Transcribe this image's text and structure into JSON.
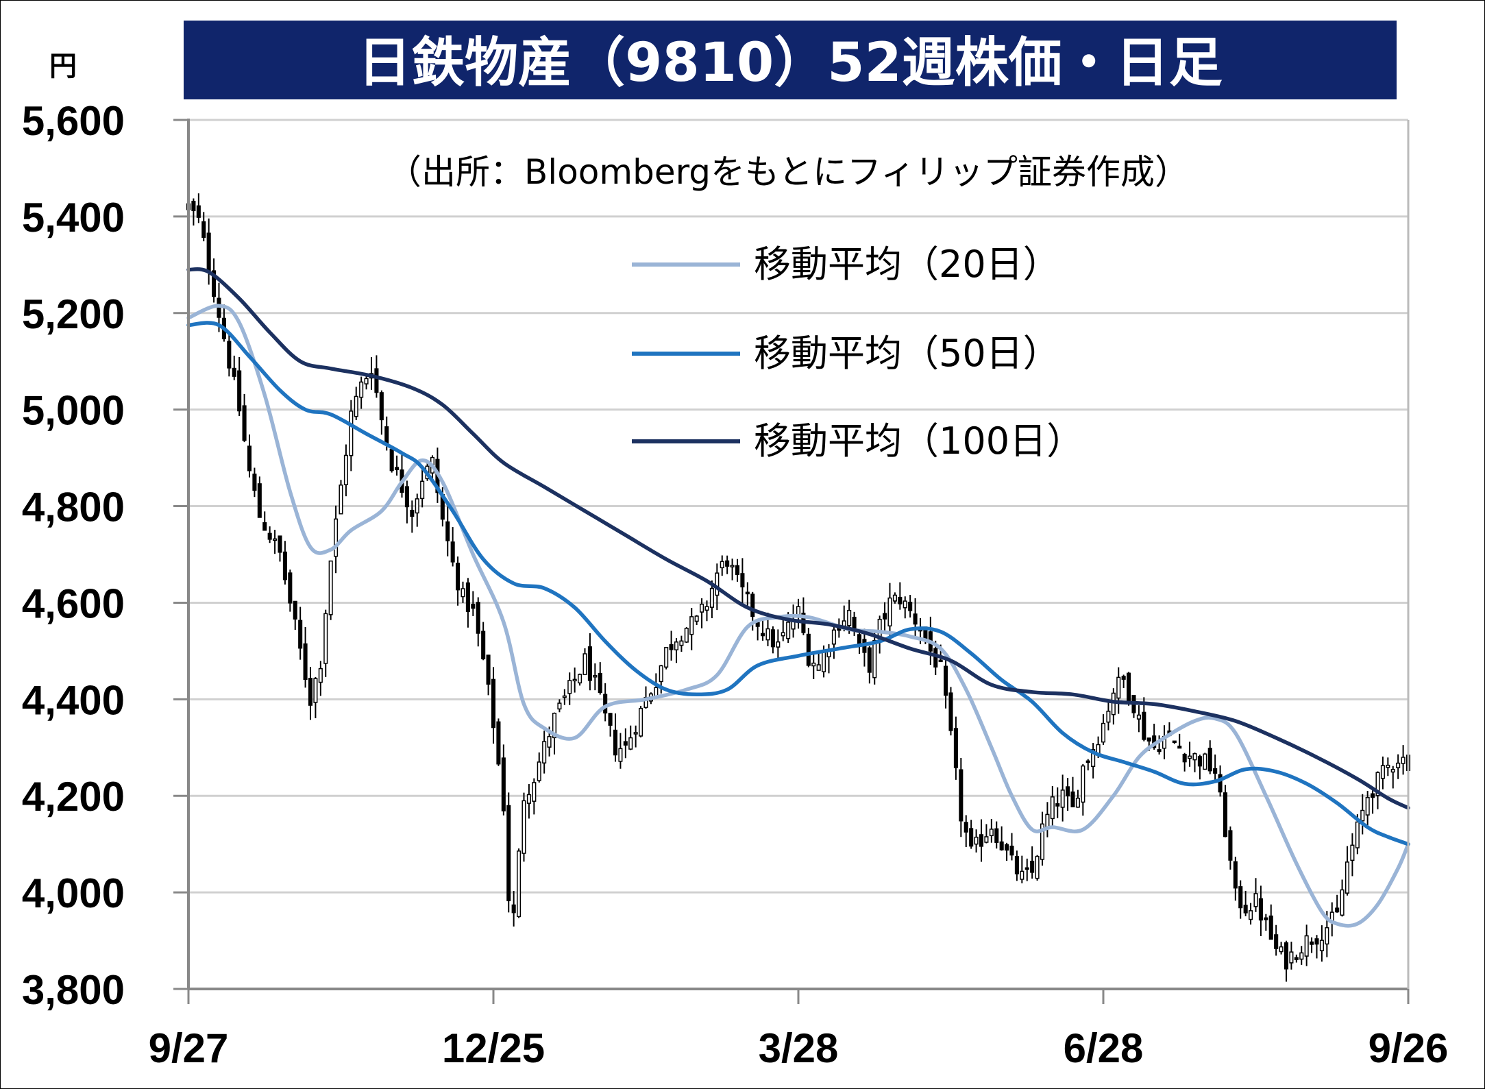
{
  "chart_data": {
    "type": "candlestick",
    "title": "日鉄物産（9810）52週株価・日足",
    "unit_label": "円",
    "source_note": "（出所：Bloombergをもとにフィリップ証券作成）",
    "ylim": [
      3800,
      5600
    ],
    "y_ticks": [
      3800,
      4000,
      4200,
      4400,
      4600,
      4800,
      5000,
      5200,
      5400,
      5600
    ],
    "y_tick_labels": [
      "3,800",
      "4,000",
      "4,200",
      "4,400",
      "4,600",
      "4,800",
      "5,000",
      "5,200",
      "5,400",
      "5,600"
    ],
    "x_tick_labels": [
      "9/27",
      "12/25",
      "3/28",
      "6/28",
      "9/26"
    ],
    "x_tick_index": [
      0,
      60,
      120,
      180,
      240
    ],
    "trading_days": 241,
    "grid": true,
    "legend_position": "top-right",
    "colors": {
      "title_bg": "#10256b",
      "grid": "#d0d0d0",
      "ma20": "#9ab4d6",
      "ma50": "#1f74c0",
      "ma100": "#1c3160",
      "candle_up": "#ffffff",
      "candle_down": "#000000"
    },
    "series": [
      {
        "name": "移動平均（20日）",
        "key": "ma20",
        "anchors": [
          [
            0,
            5190
          ],
          [
            6,
            5215
          ],
          [
            10,
            5180
          ],
          [
            15,
            5030
          ],
          [
            20,
            4830
          ],
          [
            24,
            4715
          ],
          [
            28,
            4710
          ],
          [
            32,
            4750
          ],
          [
            38,
            4790
          ],
          [
            42,
            4850
          ],
          [
            46,
            4895
          ],
          [
            50,
            4850
          ],
          [
            56,
            4700
          ],
          [
            62,
            4560
          ],
          [
            66,
            4390
          ],
          [
            70,
            4340
          ],
          [
            76,
            4320
          ],
          [
            82,
            4385
          ],
          [
            90,
            4400
          ],
          [
            98,
            4420
          ],
          [
            104,
            4450
          ],
          [
            110,
            4550
          ],
          [
            116,
            4570
          ],
          [
            122,
            4570
          ],
          [
            130,
            4545
          ],
          [
            136,
            4540
          ],
          [
            142,
            4530
          ],
          [
            148,
            4505
          ],
          [
            153,
            4420
          ],
          [
            158,
            4300
          ],
          [
            162,
            4200
          ],
          [
            166,
            4130
          ],
          [
            170,
            4135
          ],
          [
            176,
            4130
          ],
          [
            182,
            4200
          ],
          [
            187,
            4280
          ],
          [
            192,
            4320
          ],
          [
            198,
            4355
          ],
          [
            202,
            4360
          ],
          [
            206,
            4330
          ],
          [
            212,
            4200
          ],
          [
            218,
            4060
          ],
          [
            223,
            3960
          ],
          [
            226,
            3935
          ],
          [
            230,
            3935
          ],
          [
            234,
            3975
          ],
          [
            238,
            4050
          ],
          [
            240,
            4100
          ]
        ]
      },
      {
        "name": "移動平均（50日）",
        "key": "ma50",
        "anchors": [
          [
            0,
            5175
          ],
          [
            6,
            5175
          ],
          [
            12,
            5110
          ],
          [
            18,
            5040
          ],
          [
            23,
            5000
          ],
          [
            28,
            4990
          ],
          [
            35,
            4950
          ],
          [
            42,
            4910
          ],
          [
            46,
            4880
          ],
          [
            52,
            4790
          ],
          [
            58,
            4690
          ],
          [
            64,
            4640
          ],
          [
            70,
            4630
          ],
          [
            76,
            4590
          ],
          [
            82,
            4520
          ],
          [
            88,
            4460
          ],
          [
            94,
            4420
          ],
          [
            100,
            4410
          ],
          [
            106,
            4420
          ],
          [
            112,
            4470
          ],
          [
            120,
            4490
          ],
          [
            128,
            4505
          ],
          [
            136,
            4520
          ],
          [
            142,
            4545
          ],
          [
            148,
            4540
          ],
          [
            154,
            4495
          ],
          [
            160,
            4440
          ],
          [
            166,
            4395
          ],
          [
            172,
            4330
          ],
          [
            178,
            4290
          ],
          [
            184,
            4270
          ],
          [
            190,
            4250
          ],
          [
            196,
            4225
          ],
          [
            202,
            4230
          ],
          [
            208,
            4255
          ],
          [
            214,
            4250
          ],
          [
            220,
            4225
          ],
          [
            226,
            4185
          ],
          [
            232,
            4135
          ],
          [
            236,
            4115
          ],
          [
            240,
            4100
          ]
        ]
      },
      {
        "name": "移動平均（100日）",
        "key": "ma100",
        "anchors": [
          [
            0,
            5290
          ],
          [
            4,
            5285
          ],
          [
            10,
            5230
          ],
          [
            16,
            5160
          ],
          [
            22,
            5100
          ],
          [
            28,
            5085
          ],
          [
            36,
            5070
          ],
          [
            44,
            5045
          ],
          [
            50,
            5010
          ],
          [
            56,
            4950
          ],
          [
            62,
            4890
          ],
          [
            70,
            4840
          ],
          [
            78,
            4790
          ],
          [
            86,
            4740
          ],
          [
            94,
            4690
          ],
          [
            102,
            4645
          ],
          [
            110,
            4590
          ],
          [
            118,
            4565
          ],
          [
            126,
            4555
          ],
          [
            134,
            4535
          ],
          [
            142,
            4505
          ],
          [
            150,
            4480
          ],
          [
            158,
            4430
          ],
          [
            166,
            4415
          ],
          [
            174,
            4410
          ],
          [
            182,
            4395
          ],
          [
            190,
            4390
          ],
          [
            198,
            4375
          ],
          [
            206,
            4355
          ],
          [
            214,
            4320
          ],
          [
            222,
            4280
          ],
          [
            230,
            4235
          ],
          [
            236,
            4195
          ],
          [
            240,
            4175
          ]
        ]
      }
    ],
    "price_path": [
      [
        0,
        5420
      ],
      [
        2,
        5390
      ],
      [
        4,
        5300
      ],
      [
        6,
        5200
      ],
      [
        8,
        5100
      ],
      [
        10,
        5000
      ],
      [
        12,
        4870
      ],
      [
        14,
        4780
      ],
      [
        16,
        4740
      ],
      [
        18,
        4700
      ],
      [
        20,
        4600
      ],
      [
        22,
        4500
      ],
      [
        24,
        4400
      ],
      [
        26,
        4480
      ],
      [
        28,
        4690
      ],
      [
        30,
        4840
      ],
      [
        32,
        4990
      ],
      [
        34,
        5050
      ],
      [
        36,
        5090
      ],
      [
        38,
        4980
      ],
      [
        40,
        4890
      ],
      [
        42,
        4840
      ],
      [
        44,
        4790
      ],
      [
        46,
        4860
      ],
      [
        48,
        4890
      ],
      [
        50,
        4770
      ],
      [
        52,
        4680
      ],
      [
        54,
        4610
      ],
      [
        56,
        4580
      ],
      [
        58,
        4480
      ],
      [
        60,
        4350
      ],
      [
        62,
        4180
      ],
      [
        63,
        3990
      ],
      [
        64,
        3950
      ],
      [
        66,
        4200
      ],
      [
        68,
        4240
      ],
      [
        70,
        4300
      ],
      [
        72,
        4360
      ],
      [
        74,
        4400
      ],
      [
        76,
        4440
      ],
      [
        78,
        4480
      ],
      [
        80,
        4430
      ],
      [
        82,
        4360
      ],
      [
        84,
        4300
      ],
      [
        86,
        4300
      ],
      [
        88,
        4350
      ],
      [
        90,
        4400
      ],
      [
        92,
        4440
      ],
      [
        94,
        4500
      ],
      [
        96,
        4530
      ],
      [
        98,
        4550
      ],
      [
        100,
        4560
      ],
      [
        102,
        4600
      ],
      [
        104,
        4660
      ],
      [
        106,
        4690
      ],
      [
        108,
        4640
      ],
      [
        110,
        4600
      ],
      [
        112,
        4560
      ],
      [
        114,
        4530
      ],
      [
        116,
        4510
      ],
      [
        118,
        4550
      ],
      [
        120,
        4580
      ],
      [
        122,
        4490
      ],
      [
        124,
        4470
      ],
      [
        126,
        4520
      ],
      [
        128,
        4560
      ],
      [
        130,
        4580
      ],
      [
        132,
        4500
      ],
      [
        134,
        4470
      ],
      [
        136,
        4550
      ],
      [
        138,
        4600
      ],
      [
        140,
        4610
      ],
      [
        142,
        4580
      ],
      [
        144,
        4550
      ],
      [
        146,
        4500
      ],
      [
        148,
        4460
      ],
      [
        150,
        4320
      ],
      [
        152,
        4160
      ],
      [
        154,
        4080
      ],
      [
        156,
        4110
      ],
      [
        158,
        4140
      ],
      [
        160,
        4100
      ],
      [
        162,
        4060
      ],
      [
        164,
        4030
      ],
      [
        166,
        4040
      ],
      [
        168,
        4130
      ],
      [
        170,
        4180
      ],
      [
        172,
        4200
      ],
      [
        174,
        4170
      ],
      [
        176,
        4260
      ],
      [
        178,
        4300
      ],
      [
        180,
        4350
      ],
      [
        182,
        4420
      ],
      [
        184,
        4440
      ],
      [
        186,
        4390
      ],
      [
        188,
        4330
      ],
      [
        190,
        4300
      ],
      [
        192,
        4320
      ],
      [
        194,
        4310
      ],
      [
        196,
        4290
      ],
      [
        198,
        4280
      ],
      [
        200,
        4270
      ],
      [
        202,
        4250
      ],
      [
        204,
        4130
      ],
      [
        206,
        3990
      ],
      [
        208,
        3970
      ],
      [
        210,
        3980
      ],
      [
        212,
        3930
      ],
      [
        214,
        3880
      ],
      [
        216,
        3860
      ],
      [
        218,
        3880
      ],
      [
        220,
        3900
      ],
      [
        222,
        3910
      ],
      [
        224,
        3930
      ],
      [
        226,
        3950
      ],
      [
        228,
        4060
      ],
      [
        230,
        4130
      ],
      [
        232,
        4200
      ],
      [
        234,
        4230
      ],
      [
        236,
        4260
      ],
      [
        238,
        4280
      ],
      [
        240,
        4270
      ]
    ]
  }
}
